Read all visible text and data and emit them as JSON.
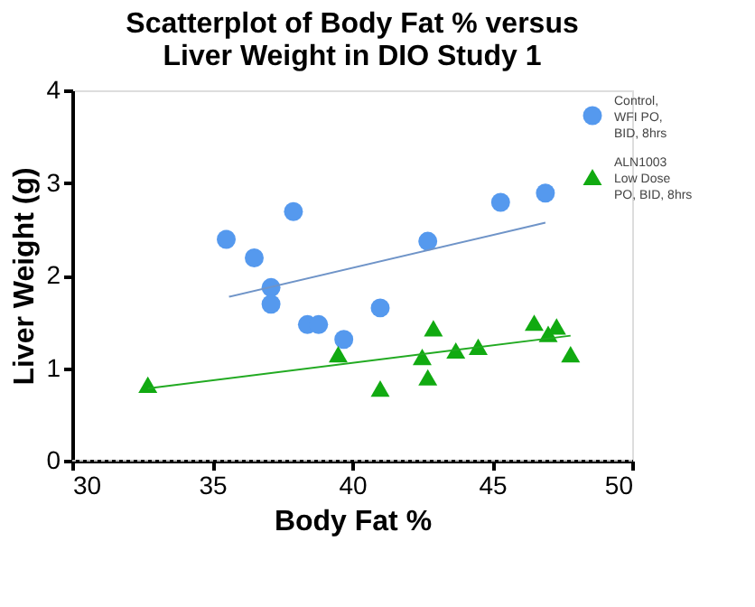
{
  "chart_data": {
    "type": "scatter",
    "title": "Scatterplot of Body Fat % versus\nLiver Weight in DIO Study 1",
    "xlabel": "Body Fat %",
    "ylabel": "Liver  Weight (g)",
    "xlim": [
      30,
      50
    ],
    "xticks": [
      30,
      35,
      40,
      45,
      50
    ],
    "ylim": [
      0,
      4
    ],
    "yticks": [
      0,
      1,
      2,
      3,
      4
    ],
    "grid": false,
    "legend": "top right",
    "ref_lines": [
      {
        "axis": "y",
        "value": 0,
        "label": null,
        "line_style": "dotted",
        "color": "#bbbbbb"
      }
    ],
    "series": [
      {
        "name": "Control,\nWFI PO,\nBID, 8hrs",
        "color": "#5599ee",
        "marker": "circle",
        "x": [
          35.5,
          36.5,
          37.1,
          37.1,
          37.9,
          38.4,
          38.8,
          39.7,
          41.0,
          42.7,
          45.3,
          46.9
        ],
        "values": [
          2.39,
          2.19,
          1.87,
          1.69,
          2.69,
          1.47,
          1.47,
          1.31,
          1.65,
          2.37,
          2.79,
          2.89
        ]
      },
      {
        "name": "ALN1003\nLow Dose\nPO, BID, 8hrs",
        "color": "#11aa11",
        "marker": "triangle",
        "x": [
          32.7,
          39.5,
          41.0,
          42.5,
          42.7,
          42.9,
          43.7,
          44.5,
          46.5,
          47.0,
          47.3,
          47.8
        ],
        "values": [
          0.82,
          1.15,
          0.78,
          1.12,
          0.9,
          1.43,
          1.19,
          1.23,
          1.49,
          1.37,
          1.45,
          1.15
        ]
      },
      {
        "type": "line",
        "color": "#6f94c8",
        "x": [
          35.6,
          46.9
        ],
        "values": [
          1.77,
          2.57
        ]
      },
      {
        "type": "line",
        "color": "#22aa22",
        "x": [
          32.7,
          47.8
        ],
        "values": [
          0.78,
          1.35
        ]
      }
    ]
  }
}
